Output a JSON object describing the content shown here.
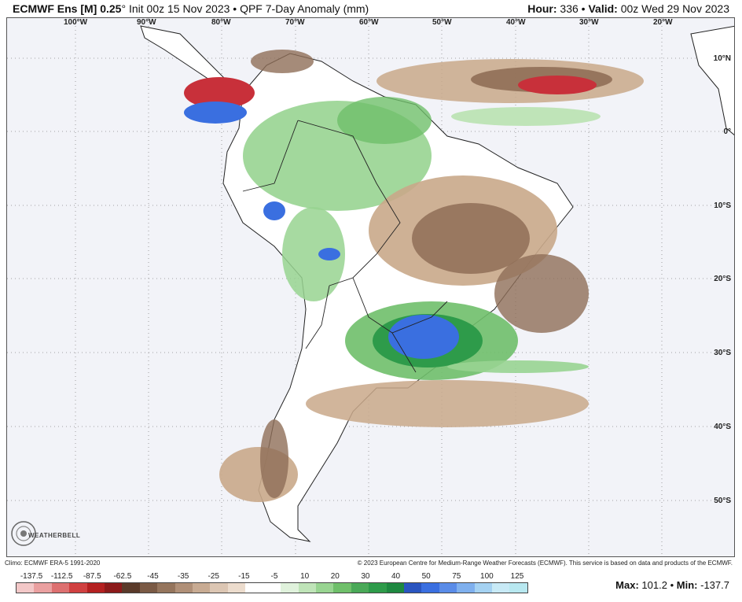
{
  "header": {
    "model": "ECMWF Ens [M] 0.25",
    "degree": "°",
    "init": "Init 00z 15 Nov 2023",
    "sep1": "•",
    "product": "QPF 7-Day Anomaly (mm)",
    "hour_label": "Hour:",
    "hour": "336",
    "sep2": "•",
    "valid_label": "Valid:",
    "valid": "00z Wed 29 Nov 2023"
  },
  "map": {
    "lon_labels": [
      "100°W",
      "90°W",
      "80°W",
      "70°W",
      "60°W",
      "50°W",
      "40°W",
      "30°W",
      "20°W"
    ],
    "lat_labels": [
      "10°N",
      "0°",
      "10°S",
      "20°S",
      "30°S",
      "40°S",
      "50°S"
    ],
    "colors": {
      "ocean": "#f2f3f8",
      "land": "#ffffff",
      "wet": "#6fbf6a",
      "wet_strong": "#2e9b4a",
      "very_wet": "#3a6fe0",
      "dry": "#c9a88a",
      "dry_strong": "#8f6e57",
      "very_dry": "#c8303a"
    }
  },
  "footer": {
    "climo": "Climo: ECMWF ERA-5 1991-2020",
    "copyright": "© 2023 European Centre for Medium-Range Weather Forecasts (ECMWF). This service is based on data and products of the ECMWF."
  },
  "logo": {
    "text": "WEATHERBELL"
  },
  "colorbar": {
    "ticks": [
      "-137.5",
      "-112.5",
      "-87.5",
      "-62.5",
      "-45",
      "-35",
      "-25",
      "-15",
      "-5",
      "10",
      "20",
      "30",
      "40",
      "50",
      "75",
      "100",
      "125"
    ],
    "colors": [
      "#f3c8c8",
      "#eaa0a0",
      "#dd7070",
      "#d04040",
      "#b42020",
      "#8c1a1a",
      "#5a3a2a",
      "#7a5a45",
      "#95755d",
      "#b09078",
      "#c8ab93",
      "#dcc6b3",
      "#ecdccd",
      "#ffffff",
      "#ffffff",
      "#e0f2dc",
      "#bfe4b8",
      "#98d491",
      "#6fbf6a",
      "#4aa958",
      "#2e9b4a",
      "#1e8840",
      "#2a55c0",
      "#3a6fe0",
      "#5a8ce8",
      "#7fb0ee",
      "#a5d2f2",
      "#c8eaf6",
      "#b8e8f0"
    ]
  },
  "stats": {
    "max_label": "Max:",
    "max": "101.2",
    "sep": "•",
    "min_label": "Min:",
    "min": "-137.7"
  }
}
